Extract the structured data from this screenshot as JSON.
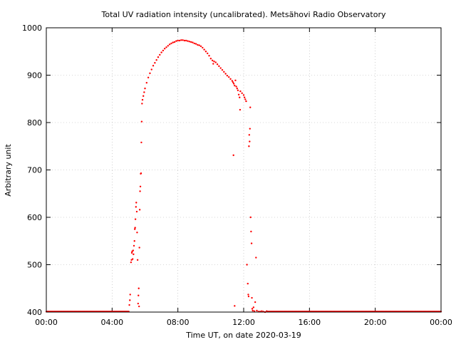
{
  "chart_data": {
    "type": "scatter",
    "title": "Total UV radiation intensity (uncalibrated). Metsähovi Radio Observatory",
    "xlabel": "Time UT, on date 2020-03-19",
    "ylabel": "Arbitrary unit",
    "xlim": [
      0,
      24
    ],
    "ylim": [
      400,
      1000
    ],
    "x_ticks": [
      {
        "value": 0,
        "label": "00:00"
      },
      {
        "value": 4,
        "label": "04:00"
      },
      {
        "value": 8,
        "label": "08:00"
      },
      {
        "value": 12,
        "label": "12:00"
      },
      {
        "value": 16,
        "label": "16:00"
      },
      {
        "value": 20,
        "label": "20:00"
      },
      {
        "value": 24,
        "label": "00:00"
      }
    ],
    "y_ticks": [
      {
        "value": 400,
        "label": "400"
      },
      {
        "value": 500,
        "label": "500"
      },
      {
        "value": 600,
        "label": "600"
      },
      {
        "value": 700,
        "label": "700"
      },
      {
        "value": 800,
        "label": "800"
      },
      {
        "value": 900,
        "label": "900"
      },
      {
        "value": 1000,
        "label": "1000"
      }
    ],
    "grid": true,
    "marker_color": "#ff0000",
    "series": [
      {
        "points": [
          [
            5.05,
            415
          ],
          [
            5.08,
            425
          ],
          [
            5.1,
            437
          ],
          [
            5.15,
            505
          ],
          [
            5.18,
            510
          ],
          [
            5.2,
            525
          ],
          [
            5.22,
            528
          ],
          [
            5.25,
            512
          ],
          [
            5.28,
            530
          ],
          [
            5.3,
            522
          ],
          [
            5.33,
            540
          ],
          [
            5.36,
            550
          ],
          [
            5.38,
            575
          ],
          [
            5.4,
            578
          ],
          [
            5.42,
            596
          ],
          [
            5.45,
            622
          ],
          [
            5.47,
            631
          ],
          [
            5.5,
            612
          ],
          [
            5.52,
            568
          ],
          [
            5.55,
            510
          ],
          [
            5.58,
            418
          ],
          [
            5.6,
            435
          ],
          [
            5.62,
            450
          ],
          [
            5.64,
            412
          ],
          [
            5.66,
            536
          ],
          [
            5.68,
            616
          ],
          [
            5.7,
            655
          ],
          [
            5.72,
            665
          ],
          [
            5.74,
            692
          ],
          [
            5.76,
            693
          ],
          [
            5.78,
            758
          ],
          [
            5.8,
            802
          ],
          [
            5.82,
            840
          ],
          [
            5.85,
            848
          ],
          [
            5.9,
            856
          ],
          [
            5.95,
            864
          ],
          [
            6.0,
            872
          ],
          [
            6.1,
            884
          ],
          [
            6.2,
            895
          ],
          [
            6.3,
            904
          ],
          [
            6.4,
            912
          ],
          [
            6.5,
            920
          ],
          [
            6.6,
            926
          ],
          [
            6.7,
            932
          ],
          [
            6.8,
            938
          ],
          [
            6.9,
            943
          ],
          [
            7.0,
            948
          ],
          [
            7.1,
            952
          ],
          [
            7.2,
            956
          ],
          [
            7.3,
            959
          ],
          [
            7.4,
            962
          ],
          [
            7.5,
            965
          ],
          [
            7.6,
            967
          ],
          [
            7.7,
            969
          ],
          [
            7.8,
            970
          ],
          [
            7.9,
            972
          ],
          [
            8.0,
            973
          ],
          [
            8.1,
            973
          ],
          [
            8.2,
            974
          ],
          [
            8.3,
            974
          ],
          [
            8.4,
            973
          ],
          [
            8.5,
            973
          ],
          [
            8.6,
            972
          ],
          [
            8.7,
            971
          ],
          [
            8.8,
            970
          ],
          [
            8.9,
            969
          ],
          [
            9.0,
            967
          ],
          [
            9.1,
            966
          ],
          [
            9.2,
            964
          ],
          [
            9.3,
            963
          ],
          [
            9.4,
            961
          ],
          [
            9.5,
            958
          ],
          [
            9.6,
            954
          ],
          [
            9.7,
            950
          ],
          [
            9.8,
            946
          ],
          [
            9.9,
            941
          ],
          [
            10.0,
            935
          ],
          [
            10.1,
            931
          ],
          [
            10.15,
            924
          ],
          [
            10.2,
            929
          ],
          [
            10.3,
            927
          ],
          [
            10.4,
            923
          ],
          [
            10.5,
            919
          ],
          [
            10.6,
            915
          ],
          [
            10.7,
            911
          ],
          [
            10.8,
            907
          ],
          [
            10.9,
            903
          ],
          [
            11.0,
            899
          ],
          [
            11.1,
            896
          ],
          [
            11.2,
            892
          ],
          [
            11.3,
            888
          ],
          [
            11.35,
            885
          ],
          [
            11.38,
            731
          ],
          [
            11.4,
            882
          ],
          [
            11.45,
            878
          ],
          [
            11.5,
            889
          ],
          [
            11.55,
            876
          ],
          [
            11.6,
            872
          ],
          [
            11.65,
            868
          ],
          [
            11.7,
            859
          ],
          [
            11.75,
            853
          ],
          [
            11.78,
            827
          ],
          [
            11.8,
            866
          ],
          [
            11.9,
            862
          ],
          [
            12.0,
            858
          ],
          [
            12.05,
            853
          ],
          [
            12.1,
            849
          ],
          [
            12.15,
            845
          ],
          [
            12.2,
            500
          ],
          [
            12.25,
            460
          ],
          [
            12.28,
            437
          ],
          [
            12.3,
            433
          ],
          [
            12.32,
            750
          ],
          [
            12.34,
            774
          ],
          [
            12.36,
            760
          ],
          [
            12.38,
            787
          ],
          [
            12.4,
            832
          ],
          [
            12.42,
            600
          ],
          [
            12.45,
            570
          ],
          [
            12.48,
            545
          ],
          [
            12.5,
            430
          ],
          [
            12.52,
            407
          ],
          [
            12.55,
            403
          ],
          [
            12.6,
            410
          ],
          [
            12.65,
            402
          ],
          [
            12.7,
            421
          ],
          [
            12.75,
            515
          ],
          [
            12.8,
            403
          ],
          [
            12.9,
            401
          ],
          [
            13.0,
            401
          ],
          [
            13.1,
            402
          ],
          [
            13.2,
            401
          ],
          [
            13.3,
            400
          ],
          [
            13.4,
            402
          ],
          [
            11.45,
            413
          ]
        ]
      }
    ]
  }
}
